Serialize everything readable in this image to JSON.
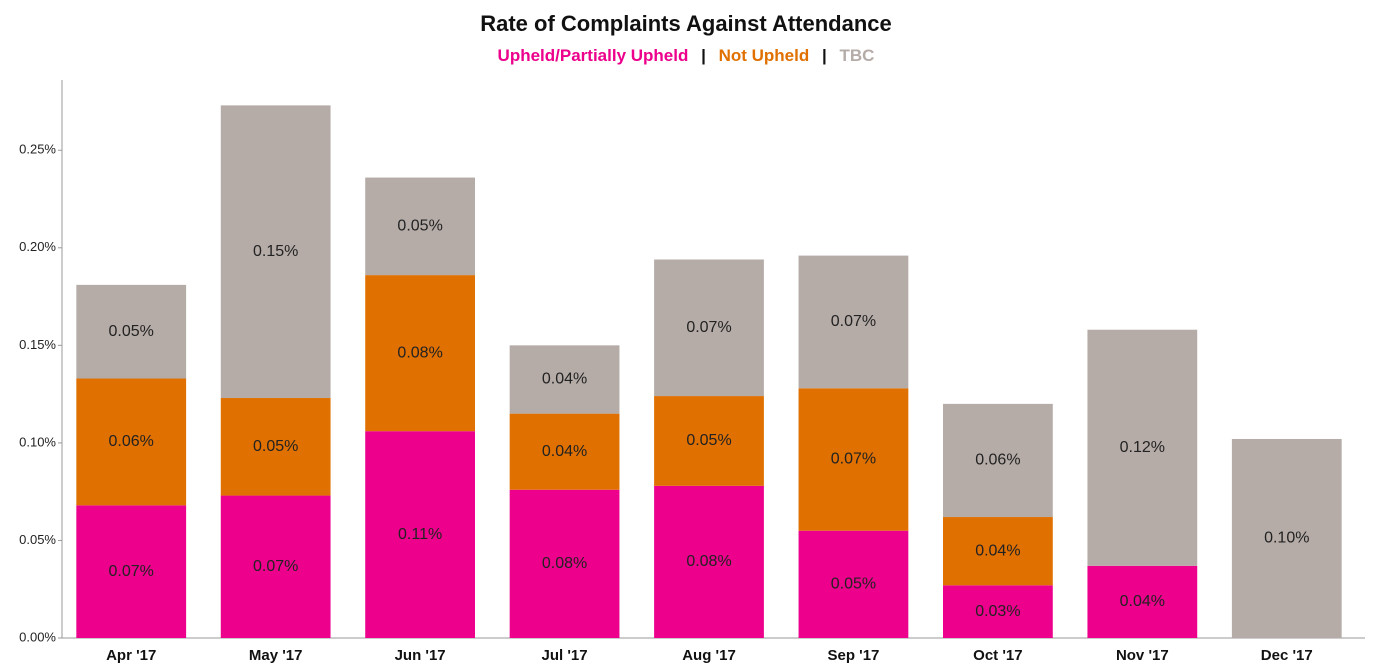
{
  "chart_data": {
    "type": "stacked_bar",
    "title": "Rate of Complaints Against Attendance",
    "legend_separator": "|",
    "categories": [
      "Apr '17",
      "May '17",
      "Jun '17",
      "Jul '17",
      "Aug '17",
      "Sep '17",
      "Oct '17",
      "Nov '17",
      "Dec '17"
    ],
    "series": [
      {
        "name": "Upheld/Partially Upheld",
        "color": "#ec008c",
        "values": [
          0.068,
          0.073,
          0.106,
          0.076,
          0.078,
          0.055,
          0.027,
          0.037,
          0
        ],
        "value_labels": [
          "0.07%",
          "0.07%",
          "0.11%",
          "0.08%",
          "0.08%",
          "0.05%",
          "0.03%",
          "0.04%",
          null
        ]
      },
      {
        "name": "Not Upheld",
        "color": "#e07000",
        "values": [
          0.065,
          0.05,
          0.08,
          0.039,
          0.046,
          0.073,
          0.035,
          0,
          0
        ],
        "value_labels": [
          "0.06%",
          "0.05%",
          "0.08%",
          "0.04%",
          "0.05%",
          "0.07%",
          "0.04%",
          null,
          null
        ]
      },
      {
        "name": "TBC",
        "color": "#b5aca8",
        "values": [
          0.048,
          0.15,
          0.05,
          0.035,
          0.07,
          0.068,
          0.058,
          0.121,
          0.102
        ],
        "value_labels": [
          "0.05%",
          "0.15%",
          "0.05%",
          "0.04%",
          "0.07%",
          "0.07%",
          "0.06%",
          "0.12%",
          "0.10%"
        ]
      }
    ],
    "ylim": [
      0,
      0.286
    ],
    "yticks": [
      {
        "value": 0,
        "label": "0.00%"
      },
      {
        "value": 0.05,
        "label": "0.05%"
      },
      {
        "value": 0.1,
        "label": "0.10%"
      },
      {
        "value": 0.15,
        "label": "0.15%"
      },
      {
        "value": 0.2,
        "label": "0.20%"
      },
      {
        "value": 0.25,
        "label": "0.25%"
      }
    ],
    "grid": false
  }
}
